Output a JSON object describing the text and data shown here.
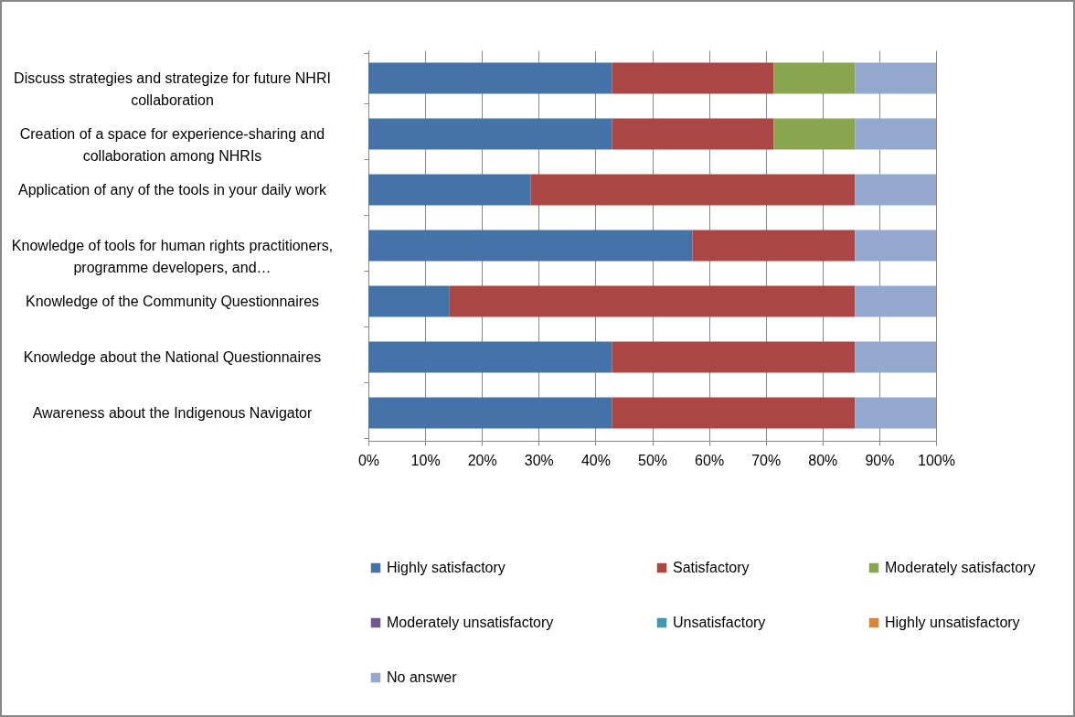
{
  "chart_data": {
    "type": "bar",
    "orientation": "horizontal",
    "stacked": true,
    "grid": "x",
    "legend": "bottom",
    "categories": [
      "Discuss strategies and strategize for future NHRI collaboration",
      "Creation of a space for experience-sharing and collaboration among NHRIs",
      "Application of any of the tools in your daily work",
      "Knowledge of tools for human rights practitioners, programme developers, and…",
      "Knowledge of the Community Questionnaires",
      "Knowledge about the National Questionnaires",
      "Awareness about the Indigenous Navigator"
    ],
    "xlim": [
      0,
      100
    ],
    "xticks": [
      {
        "value": 0,
        "label": "0%"
      },
      {
        "value": 10,
        "label": "10%"
      },
      {
        "value": 20,
        "label": "20%"
      },
      {
        "value": 30,
        "label": "30%"
      },
      {
        "value": 40,
        "label": "40%"
      },
      {
        "value": 50,
        "label": "50%"
      },
      {
        "value": 60,
        "label": "60%"
      },
      {
        "value": 70,
        "label": "70%"
      },
      {
        "value": 80,
        "label": "80%"
      },
      {
        "value": 90,
        "label": "90%"
      },
      {
        "value": 100,
        "label": "100%"
      }
    ],
    "series": [
      {
        "name": "Highly satisfactory",
        "color": "#4572a7",
        "values": [
          42.9,
          42.9,
          28.6,
          57.1,
          14.3,
          42.9,
          42.9
        ]
      },
      {
        "name": "Satisfactory",
        "color": "#aa4643",
        "values": [
          28.5,
          28.5,
          57.1,
          28.6,
          71.4,
          42.8,
          42.8
        ]
      },
      {
        "name": "Moderately satisfactory",
        "color": "#89a54e",
        "values": [
          14.3,
          14.3,
          0,
          0,
          0,
          0,
          0
        ]
      },
      {
        "name": "Moderately unsatisfactory",
        "color": "#71588f",
        "values": [
          0,
          0,
          0,
          0,
          0,
          0,
          0
        ]
      },
      {
        "name": "Unsatisfactory",
        "color": "#4198af",
        "values": [
          0,
          0,
          0,
          0,
          0,
          0,
          0
        ]
      },
      {
        "name": "Highly unsatisfactory",
        "color": "#db843d",
        "values": [
          0,
          0,
          0,
          0,
          0,
          0,
          0
        ]
      },
      {
        "name": "No answer",
        "color": "#93a9cf",
        "values": [
          14.3,
          14.3,
          14.3,
          14.3,
          14.3,
          14.3,
          14.3
        ]
      }
    ]
  }
}
